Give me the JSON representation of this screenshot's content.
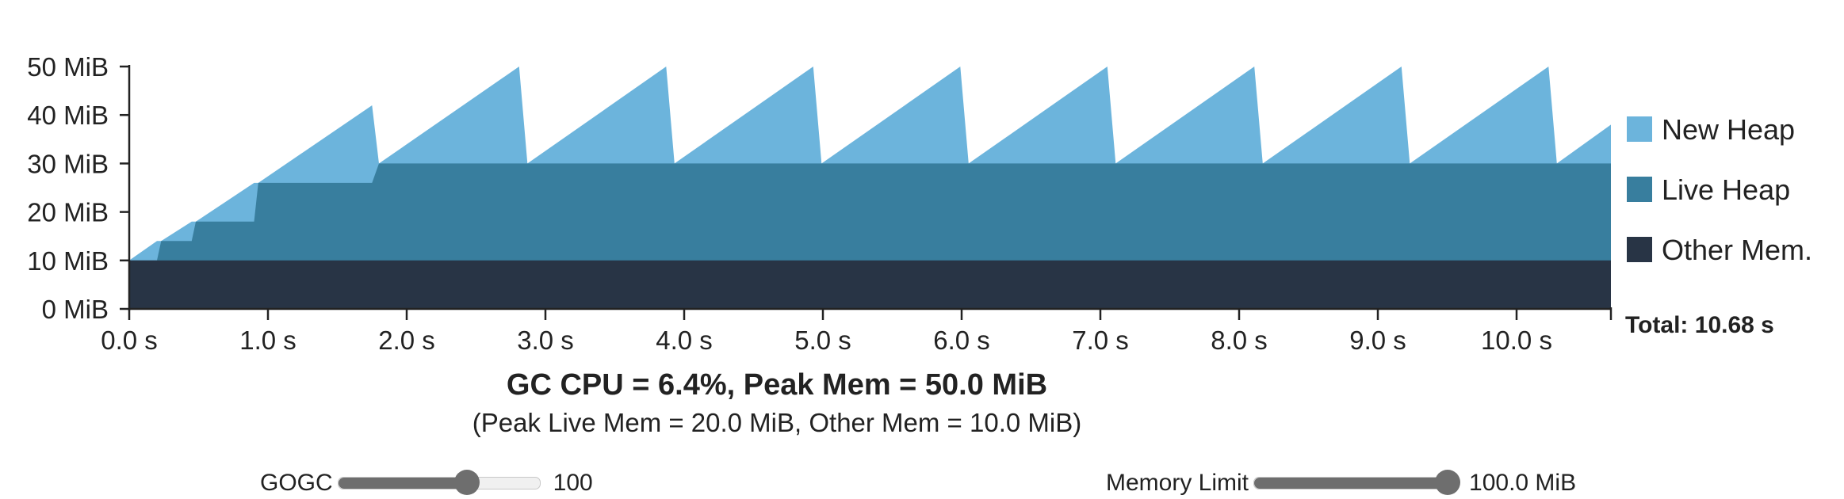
{
  "chart_data": {
    "type": "area",
    "x_unit": "s",
    "xlim": [
      0,
      10.68
    ],
    "ylim": [
      0,
      50
    ],
    "y_unit": "MiB",
    "x_ticks": [
      "0.0 s",
      "1.0 s",
      "2.0 s",
      "3.0 s",
      "4.0 s",
      "5.0 s",
      "6.0 s",
      "7.0 s",
      "8.0 s",
      "9.0 s",
      "10.0 s"
    ],
    "y_ticks": [
      "0 MiB",
      "10 MiB",
      "20 MiB",
      "30 MiB",
      "40 MiB",
      "50 MiB"
    ],
    "legend_position": "right",
    "series": [
      {
        "name": "New Heap",
        "color": "#6cb4dc",
        "points": [
          [
            0,
            10
          ],
          [
            0.2,
            14
          ],
          [
            0.23,
            14
          ],
          [
            0.45,
            18
          ],
          [
            0.48,
            18
          ],
          [
            0.9,
            26
          ],
          [
            0.93,
            26
          ],
          [
            1.75,
            42
          ],
          [
            1.8,
            30
          ],
          [
            2.81,
            50
          ],
          [
            2.87,
            30
          ],
          [
            3.87,
            50
          ],
          [
            3.93,
            30
          ],
          [
            4.93,
            50
          ],
          [
            4.99,
            30
          ],
          [
            5.99,
            50
          ],
          [
            6.05,
            30
          ],
          [
            7.05,
            50
          ],
          [
            7.11,
            30
          ],
          [
            8.11,
            50
          ],
          [
            8.17,
            30
          ],
          [
            9.17,
            50
          ],
          [
            9.23,
            30
          ],
          [
            10.23,
            50
          ],
          [
            10.29,
            30
          ],
          [
            10.68,
            38
          ]
        ]
      },
      {
        "name": "Live Heap",
        "color": "#387e9e",
        "points": [
          [
            0,
            10
          ],
          [
            0.2,
            10
          ],
          [
            0.23,
            14
          ],
          [
            0.45,
            14
          ],
          [
            0.48,
            18
          ],
          [
            0.9,
            18
          ],
          [
            0.93,
            26
          ],
          [
            1.75,
            26
          ],
          [
            1.8,
            30
          ],
          [
            10.68,
            30
          ]
        ]
      },
      {
        "name": "Other Mem.",
        "color": "#283445",
        "points": [
          [
            0,
            10
          ],
          [
            10.68,
            10
          ]
        ]
      }
    ],
    "total_label": "Total: 10.68 s"
  },
  "summary": {
    "main": "GC CPU = 6.4%, Peak Mem = 50.0 MiB",
    "sub": "(Peak Live Mem = 20.0 MiB, Other Mem = 10.0 MiB)"
  },
  "controls": {
    "gogc": {
      "label": "GOGC",
      "value_text": "100",
      "fraction": 0.64
    },
    "memory_limit": {
      "label": "Memory Limit",
      "value_text": "100.0 MiB",
      "fraction": 1.0
    }
  }
}
